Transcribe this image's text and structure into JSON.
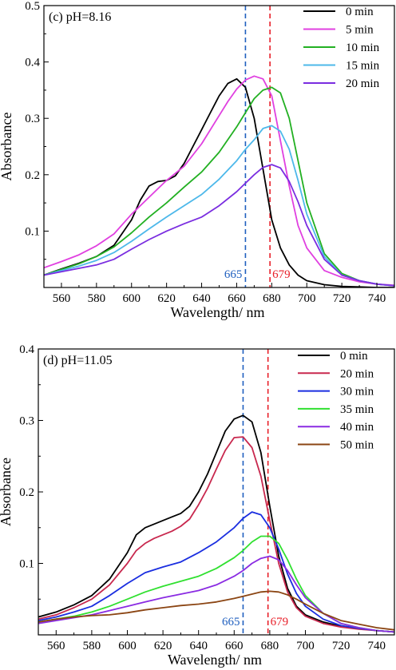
{
  "chart_data": [
    {
      "type": "line",
      "panel_label": "(c) pH=8.16",
      "xlabel": "Wavelength/ nm",
      "ylabel": "Absorbance",
      "xlim": [
        550,
        750
      ],
      "ylim": [
        0.0,
        0.5
      ],
      "xticks": [
        560,
        580,
        600,
        620,
        640,
        660,
        680,
        700,
        720,
        740
      ],
      "yticks": [
        0.1,
        0.2,
        0.3,
        0.4,
        0.5
      ],
      "grid": false,
      "legend_position": "top-right",
      "reference_lines": [
        {
          "x": 665,
          "label": "665",
          "color": "#1f5fbf"
        },
        {
          "x": 679,
          "label": "679",
          "color": "#e8202a"
        }
      ],
      "series": [
        {
          "name": "0 min",
          "color": "#000000",
          "x": [
            550,
            560,
            570,
            580,
            590,
            600,
            605,
            610,
            615,
            620,
            625,
            630,
            635,
            640,
            645,
            650,
            655,
            660,
            665,
            670,
            675,
            680,
            685,
            690,
            695,
            700,
            710,
            720,
            730,
            740,
            750
          ],
          "y": [
            0.022,
            0.033,
            0.043,
            0.055,
            0.075,
            0.12,
            0.155,
            0.18,
            0.188,
            0.19,
            0.198,
            0.22,
            0.25,
            0.28,
            0.31,
            0.34,
            0.362,
            0.37,
            0.355,
            0.3,
            0.21,
            0.12,
            0.07,
            0.04,
            0.022,
            0.012,
            0.005,
            0.002,
            0.001,
            0.0,
            0.0
          ]
        },
        {
          "name": "5 min",
          "color": "#e040e0",
          "x": [
            550,
            560,
            570,
            580,
            590,
            600,
            610,
            620,
            630,
            640,
            650,
            655,
            660,
            665,
            670,
            675,
            680,
            685,
            690,
            695,
            700,
            710,
            720,
            730,
            740,
            750
          ],
          "y": [
            0.035,
            0.046,
            0.058,
            0.074,
            0.095,
            0.13,
            0.16,
            0.19,
            0.215,
            0.255,
            0.305,
            0.33,
            0.352,
            0.368,
            0.375,
            0.37,
            0.34,
            0.26,
            0.18,
            0.11,
            0.07,
            0.03,
            0.018,
            0.01,
            0.006,
            0.004
          ]
        },
        {
          "name": "10 min",
          "color": "#22b022",
          "x": [
            550,
            560,
            570,
            580,
            590,
            600,
            610,
            620,
            630,
            640,
            650,
            660,
            665,
            670,
            675,
            680,
            685,
            690,
            695,
            700,
            710,
            720,
            730,
            740,
            750
          ],
          "y": [
            0.022,
            0.032,
            0.042,
            0.055,
            0.072,
            0.097,
            0.125,
            0.15,
            0.178,
            0.205,
            0.24,
            0.285,
            0.31,
            0.335,
            0.35,
            0.355,
            0.345,
            0.3,
            0.225,
            0.15,
            0.06,
            0.025,
            0.012,
            0.006,
            0.003
          ]
        },
        {
          "name": "15 min",
          "color": "#4db8ea",
          "x": [
            550,
            560,
            570,
            580,
            590,
            600,
            610,
            620,
            630,
            640,
            650,
            660,
            665,
            670,
            675,
            680,
            685,
            690,
            695,
            700,
            710,
            720,
            730,
            740,
            750
          ],
          "y": [
            0.022,
            0.03,
            0.038,
            0.048,
            0.062,
            0.082,
            0.104,
            0.125,
            0.145,
            0.165,
            0.192,
            0.225,
            0.245,
            0.262,
            0.282,
            0.287,
            0.277,
            0.245,
            0.19,
            0.13,
            0.055,
            0.022,
            0.012,
            0.006,
            0.003
          ]
        },
        {
          "name": "20 min",
          "color": "#7a2de0",
          "x": [
            550,
            560,
            570,
            580,
            590,
            600,
            610,
            620,
            630,
            640,
            650,
            660,
            665,
            670,
            675,
            680,
            685,
            690,
            695,
            700,
            710,
            720,
            730,
            740,
            750
          ],
          "y": [
            0.022,
            0.028,
            0.034,
            0.04,
            0.05,
            0.068,
            0.085,
            0.1,
            0.113,
            0.125,
            0.145,
            0.17,
            0.185,
            0.2,
            0.213,
            0.218,
            0.212,
            0.188,
            0.152,
            0.11,
            0.05,
            0.022,
            0.012,
            0.006,
            0.003
          ]
        }
      ]
    },
    {
      "type": "line",
      "panel_label": "(d) pH=11.05",
      "xlabel": "Wavelength/ nm",
      "ylabel": "Absorbance",
      "xlim": [
        550,
        750
      ],
      "ylim": [
        0.0,
        0.4
      ],
      "xticks": [
        560,
        580,
        600,
        620,
        640,
        660,
        680,
        700,
        720,
        740
      ],
      "yticks": [
        0.1,
        0.2,
        0.3,
        0.4
      ],
      "grid": false,
      "legend_position": "top-right",
      "reference_lines": [
        {
          "x": 665,
          "label": "665",
          "color": "#1f5fbf"
        },
        {
          "x": 679,
          "label": "679",
          "color": "#e8202a"
        }
      ],
      "series": [
        {
          "name": "0 min",
          "color": "#000000",
          "x": [
            550,
            560,
            570,
            580,
            590,
            600,
            605,
            610,
            615,
            620,
            625,
            630,
            635,
            640,
            645,
            650,
            655,
            660,
            665,
            670,
            675,
            680,
            685,
            690,
            695,
            700,
            710,
            720,
            730,
            740,
            750
          ],
          "y": [
            0.025,
            0.032,
            0.042,
            0.055,
            0.078,
            0.115,
            0.14,
            0.15,
            0.155,
            0.16,
            0.165,
            0.17,
            0.18,
            0.2,
            0.225,
            0.255,
            0.285,
            0.302,
            0.307,
            0.298,
            0.255,
            0.18,
            0.11,
            0.065,
            0.04,
            0.028,
            0.018,
            0.012,
            0.009,
            0.006,
            0.004
          ]
        },
        {
          "name": "20 min",
          "color": "#c8284e",
          "x": [
            550,
            560,
            570,
            580,
            590,
            600,
            605,
            610,
            615,
            620,
            625,
            630,
            635,
            640,
            645,
            650,
            655,
            660,
            665,
            670,
            675,
            680,
            685,
            690,
            695,
            700,
            710,
            720,
            730,
            740,
            750
          ],
          "y": [
            0.022,
            0.028,
            0.038,
            0.05,
            0.07,
            0.1,
            0.118,
            0.128,
            0.135,
            0.14,
            0.145,
            0.152,
            0.162,
            0.182,
            0.205,
            0.232,
            0.258,
            0.276,
            0.277,
            0.262,
            0.222,
            0.16,
            0.1,
            0.06,
            0.038,
            0.026,
            0.016,
            0.011,
            0.008,
            0.006,
            0.004
          ]
        },
        {
          "name": "30 min",
          "color": "#1a2ee0",
          "x": [
            550,
            560,
            570,
            580,
            590,
            600,
            610,
            620,
            630,
            640,
            650,
            660,
            665,
            670,
            675,
            680,
            685,
            690,
            695,
            700,
            710,
            720,
            730,
            740,
            750
          ],
          "y": [
            0.02,
            0.025,
            0.032,
            0.04,
            0.055,
            0.072,
            0.087,
            0.095,
            0.102,
            0.115,
            0.13,
            0.15,
            0.163,
            0.172,
            0.168,
            0.15,
            0.12,
            0.085,
            0.058,
            0.04,
            0.022,
            0.013,
            0.009,
            0.006,
            0.004
          ]
        },
        {
          "name": "35 min",
          "color": "#30e030",
          "x": [
            550,
            560,
            570,
            580,
            590,
            600,
            610,
            620,
            630,
            640,
            650,
            660,
            665,
            670,
            675,
            680,
            685,
            690,
            695,
            700,
            710,
            720,
            730,
            740,
            750
          ],
          "y": [
            0.018,
            0.022,
            0.026,
            0.032,
            0.04,
            0.05,
            0.06,
            0.068,
            0.075,
            0.082,
            0.093,
            0.108,
            0.118,
            0.13,
            0.138,
            0.138,
            0.128,
            0.105,
            0.078,
            0.055,
            0.03,
            0.016,
            0.01,
            0.006,
            0.004
          ]
        },
        {
          "name": "40 min",
          "color": "#8a2be2",
          "x": [
            550,
            560,
            570,
            580,
            590,
            600,
            610,
            620,
            630,
            640,
            650,
            660,
            665,
            670,
            675,
            680,
            685,
            690,
            695,
            700,
            710,
            720,
            730,
            740,
            750
          ],
          "y": [
            0.016,
            0.02,
            0.024,
            0.028,
            0.034,
            0.04,
            0.046,
            0.052,
            0.057,
            0.062,
            0.07,
            0.082,
            0.09,
            0.1,
            0.107,
            0.11,
            0.105,
            0.09,
            0.07,
            0.052,
            0.03,
            0.016,
            0.01,
            0.006,
            0.004
          ]
        },
        {
          "name": "50 min",
          "color": "#8b4513",
          "x": [
            550,
            560,
            570,
            580,
            590,
            600,
            610,
            620,
            630,
            640,
            650,
            660,
            665,
            670,
            675,
            680,
            685,
            690,
            695,
            700,
            710,
            720,
            730,
            740,
            750
          ],
          "y": [
            0.018,
            0.022,
            0.025,
            0.027,
            0.028,
            0.031,
            0.035,
            0.038,
            0.041,
            0.043,
            0.046,
            0.051,
            0.054,
            0.057,
            0.06,
            0.061,
            0.06,
            0.056,
            0.05,
            0.043,
            0.03,
            0.02,
            0.015,
            0.01,
            0.007
          ]
        }
      ]
    }
  ]
}
